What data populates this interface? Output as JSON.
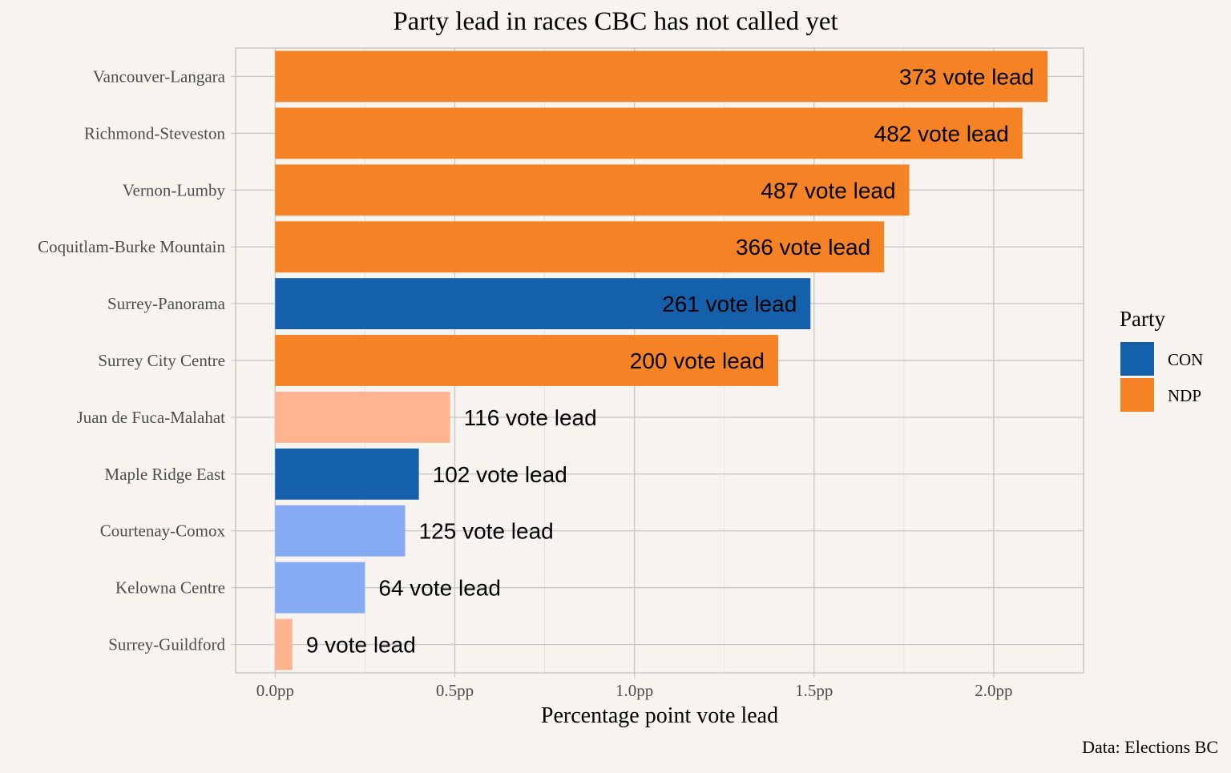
{
  "chart_data": {
    "type": "bar",
    "orientation": "horizontal",
    "title": "Party lead in races CBC has not called yet",
    "xlabel": "Percentage point vote lead",
    "ylabel": "",
    "xlim": [
      -0.11,
      2.25
    ],
    "x_ticks": [
      0,
      0.5,
      1.0,
      1.5,
      2.0
    ],
    "x_tick_labels": [
      "0.0pp",
      "0.5pp",
      "1.0pp",
      "1.5pp",
      "2.0pp"
    ],
    "grid": true,
    "legend": {
      "title": "Party",
      "placement": "right",
      "entries": [
        {
          "label": "CON",
          "color": "#1460aa"
        },
        {
          "label": "NDP",
          "color": "#f58325"
        }
      ]
    },
    "caption": "Data: Elections BC",
    "categories": [
      "Vancouver-Langara",
      "Richmond-Steveston",
      "Vernon-Lumby",
      "Coquitlam-Burke Mountain",
      "Surrey-Panorama",
      "Surrey City Centre",
      "Juan de Fuca-Malahat",
      "Maple Ridge East",
      "Courtenay-Comox",
      "Kelowna Centre",
      "Surrey-Guildford"
    ],
    "values": [
      2.15,
      2.08,
      1.765,
      1.695,
      1.49,
      1.4,
      0.487,
      0.4,
      0.362,
      0.25,
      0.048
    ],
    "bar_labels": [
      "373 vote lead",
      "482 vote lead",
      "487 vote lead",
      "366 vote lead",
      "261 vote lead",
      "200 vote lead",
      "116 vote lead",
      "102 vote lead",
      "125 vote lead",
      "64 vote lead",
      "9 vote lead"
    ],
    "bar_colors": [
      "#f58325",
      "#f58325",
      "#f58325",
      "#f58325",
      "#1460aa",
      "#f58325",
      "#ffb48f",
      "#1460aa",
      "#86abf2",
      "#86abf2",
      "#ffb48f"
    ]
  }
}
